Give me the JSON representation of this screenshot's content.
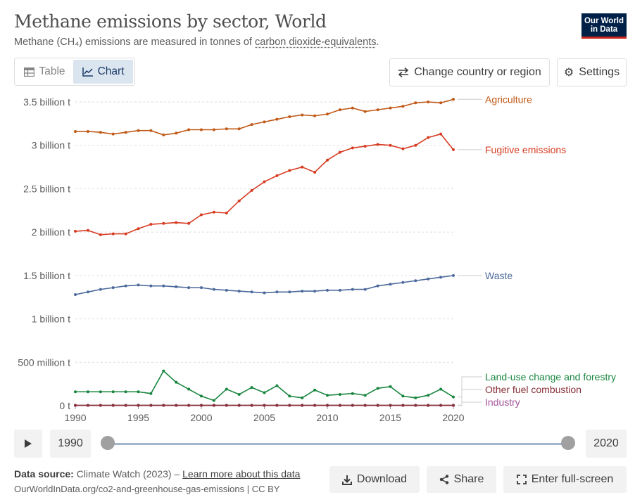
{
  "header": {
    "title": "Methane emissions by sector, World",
    "subtitle_pre": "Methane (CH₄) emissions are measured in tonnes of ",
    "subtitle_link": "carbon dioxide-equivalents",
    "subtitle_post": ".",
    "logo_line1": "Our World",
    "logo_line2": "in Data"
  },
  "tabs": [
    {
      "label": "Table",
      "icon": "table-icon"
    },
    {
      "label": "Chart",
      "icon": "line-chart-icon",
      "active": true
    }
  ],
  "controls": {
    "change_region": "Change country or region",
    "settings": "Settings"
  },
  "timeline": {
    "start_label": "1990",
    "end_label": "2020"
  },
  "footer": {
    "source_label": "Data source:",
    "source_text": "Climate Watch (2023) – ",
    "learn_more": "Learn more about this data",
    "url_text": "OurWorldInData.org/co2-and-greenhouse-gas-emissions | CC BY",
    "download": "Download",
    "share": "Share",
    "fullscreen": "Enter full-screen"
  },
  "chart_data": {
    "type": "line",
    "title": "Methane emissions by sector, World",
    "x": [
      1990,
      1991,
      1992,
      1993,
      1994,
      1995,
      1996,
      1997,
      1998,
      1999,
      2000,
      2001,
      2002,
      2003,
      2004,
      2005,
      2006,
      2007,
      2008,
      2009,
      2010,
      2011,
      2012,
      2013,
      2014,
      2015,
      2016,
      2017,
      2018,
      2019,
      2020
    ],
    "xlim": [
      1990,
      2020
    ],
    "x_ticks": [
      1990,
      1995,
      2000,
      2005,
      2010,
      2015,
      2020
    ],
    "x_tick_labels": [
      "1990",
      "1995",
      "2000",
      "2005",
      "2010",
      "2015",
      "2020"
    ],
    "ylim": [
      0,
      3500000000
    ],
    "y_ticks": [
      0,
      500000000,
      1000000000,
      1500000000,
      2000000000,
      2500000000,
      3000000000,
      3500000000
    ],
    "y_tick_labels": [
      "0 t",
      "500 million t",
      "1 billion t",
      "1.5 billion t",
      "2 billion t",
      "2.5 billion t",
      "3 billion t",
      "3.5 billion t"
    ],
    "grid": "horizontal dashed",
    "legend": "right, labels at line ends",
    "series": [
      {
        "name": "Agriculture",
        "color": "#c05917",
        "values": [
          3160000000,
          3160000000,
          3150000000,
          3130000000,
          3150000000,
          3170000000,
          3170000000,
          3120000000,
          3140000000,
          3180000000,
          3180000000,
          3180000000,
          3190000000,
          3190000000,
          3240000000,
          3270000000,
          3300000000,
          3330000000,
          3350000000,
          3340000000,
          3360000000,
          3410000000,
          3430000000,
          3390000000,
          3410000000,
          3430000000,
          3450000000,
          3490000000,
          3500000000,
          3490000000,
          3530000000
        ]
      },
      {
        "name": "Fugitive emissions",
        "color": "#d73c22",
        "values": [
          2010000000,
          2020000000,
          1970000000,
          1980000000,
          1980000000,
          2040000000,
          2090000000,
          2100000000,
          2110000000,
          2100000000,
          2200000000,
          2230000000,
          2220000000,
          2360000000,
          2480000000,
          2580000000,
          2650000000,
          2710000000,
          2750000000,
          2690000000,
          2830000000,
          2920000000,
          2970000000,
          2990000000,
          3010000000,
          3000000000,
          2960000000,
          3000000000,
          3090000000,
          3130000000,
          2950000000
        ]
      },
      {
        "name": "Waste",
        "color": "#4c6a9c",
        "values": [
          1280000000,
          1310000000,
          1340000000,
          1360000000,
          1380000000,
          1390000000,
          1380000000,
          1380000000,
          1370000000,
          1360000000,
          1360000000,
          1340000000,
          1330000000,
          1320000000,
          1310000000,
          1300000000,
          1310000000,
          1310000000,
          1320000000,
          1320000000,
          1330000000,
          1330000000,
          1340000000,
          1340000000,
          1380000000,
          1400000000,
          1420000000,
          1440000000,
          1460000000,
          1480000000,
          1500000000
        ]
      },
      {
        "name": "Land-use change and forestry",
        "color": "#18853e",
        "values": [
          160000000,
          160000000,
          160000000,
          160000000,
          160000000,
          160000000,
          140000000,
          400000000,
          270000000,
          190000000,
          110000000,
          60000000,
          190000000,
          130000000,
          210000000,
          150000000,
          230000000,
          110000000,
          90000000,
          180000000,
          120000000,
          130000000,
          140000000,
          120000000,
          200000000,
          220000000,
          110000000,
          90000000,
          120000000,
          190000000,
          100000000
        ]
      },
      {
        "name": "Other fuel combustion",
        "color": "#883039",
        "values": [
          5000000,
          5000000,
          5000000,
          5000000,
          5000000,
          5000000,
          5000000,
          5000000,
          5000000,
          5000000,
          5000000,
          5000000,
          5000000,
          5000000,
          5000000,
          5000000,
          5000000,
          5000000,
          5000000,
          5000000,
          5000000,
          5000000,
          5000000,
          5000000,
          5000000,
          5000000,
          5000000,
          5000000,
          5000000,
          5000000,
          5000000
        ]
      },
      {
        "name": "Industry",
        "color": "#a2559c",
        "values": [
          2000000,
          2000000,
          2000000,
          2000000,
          2000000,
          2000000,
          2000000,
          2000000,
          2000000,
          2000000,
          2000000,
          2000000,
          2000000,
          2000000,
          2000000,
          2000000,
          2000000,
          2000000,
          2000000,
          2000000,
          2000000,
          2000000,
          2000000,
          2000000,
          2000000,
          2000000,
          2000000,
          2000000,
          2000000,
          2000000,
          2000000
        ]
      }
    ]
  }
}
